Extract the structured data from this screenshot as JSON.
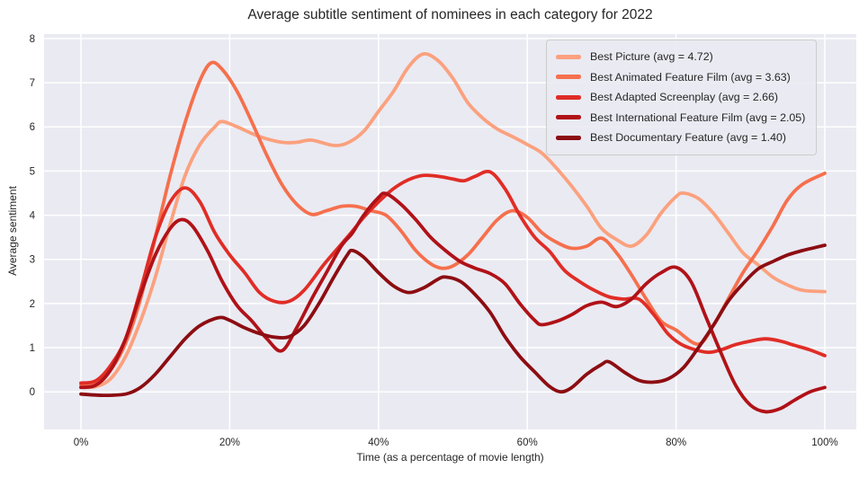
{
  "chart_data": {
    "type": "line",
    "title": "Average subtitle sentiment of nominees in each category for 2022",
    "xlabel": "Time (as a percentage of movie length)",
    "ylabel": "Average sentiment",
    "x_tick_labels": [
      "0%",
      "20%",
      "40%",
      "60%",
      "80%",
      "100%"
    ],
    "x_tick_values": [
      0,
      20,
      40,
      60,
      80,
      100
    ],
    "y_tick_values": [
      0,
      1,
      2,
      3,
      4,
      5,
      6,
      7,
      8
    ],
    "xlim": [
      0,
      100
    ],
    "ylim": [
      -0.85,
      8.1
    ],
    "grid": true,
    "grid_color": "#ffffff",
    "plot_background": "#eaeaf2",
    "text_color": "#262626",
    "legend_position": "upper right",
    "series": [
      {
        "name": "Best Picture",
        "legend_label": "Best Picture (avg = 4.72)",
        "avg": 4.72,
        "color": "#fba17e",
        "points": [
          [
            0,
            0.1
          ],
          [
            2,
            0.12
          ],
          [
            4,
            0.3
          ],
          [
            6,
            0.8
          ],
          [
            8,
            1.6
          ],
          [
            10,
            2.6
          ],
          [
            12,
            3.8
          ],
          [
            14,
            4.9
          ],
          [
            16,
            5.6
          ],
          [
            18,
            6.0
          ],
          [
            19,
            6.12
          ],
          [
            21,
            6.0
          ],
          [
            24,
            5.78
          ],
          [
            27,
            5.65
          ],
          [
            29,
            5.65
          ],
          [
            31,
            5.7
          ],
          [
            34,
            5.58
          ],
          [
            36,
            5.65
          ],
          [
            38,
            5.9
          ],
          [
            40,
            6.35
          ],
          [
            42,
            6.8
          ],
          [
            44,
            7.35
          ],
          [
            46,
            7.65
          ],
          [
            48,
            7.5
          ],
          [
            50,
            7.1
          ],
          [
            52,
            6.55
          ],
          [
            54,
            6.2
          ],
          [
            56,
            5.95
          ],
          [
            58,
            5.78
          ],
          [
            60,
            5.6
          ],
          [
            62,
            5.4
          ],
          [
            64,
            5.05
          ],
          [
            66,
            4.65
          ],
          [
            68,
            4.2
          ],
          [
            70,
            3.7
          ],
          [
            72,
            3.45
          ],
          [
            74,
            3.3
          ],
          [
            76,
            3.55
          ],
          [
            78,
            4.05
          ],
          [
            80,
            4.42
          ],
          [
            81,
            4.5
          ],
          [
            83,
            4.38
          ],
          [
            85,
            4.05
          ],
          [
            87,
            3.6
          ],
          [
            89,
            3.15
          ],
          [
            91,
            2.88
          ],
          [
            93,
            2.6
          ],
          [
            95,
            2.42
          ],
          [
            97,
            2.3
          ],
          [
            100,
            2.27
          ]
        ]
      },
      {
        "name": "Best Animated Feature Film",
        "legend_label": "Best Animated Feature Film (avg = 3.63)",
        "avg": 3.63,
        "color": "#f5704d",
        "points": [
          [
            0,
            0.15
          ],
          [
            2,
            0.2
          ],
          [
            4,
            0.5
          ],
          [
            6,
            1.1
          ],
          [
            8,
            2.1
          ],
          [
            10,
            3.5
          ],
          [
            12,
            4.9
          ],
          [
            14,
            6.1
          ],
          [
            16,
            7.05
          ],
          [
            17.5,
            7.45
          ],
          [
            19,
            7.3
          ],
          [
            21,
            6.8
          ],
          [
            23,
            6.1
          ],
          [
            25,
            5.35
          ],
          [
            27,
            4.7
          ],
          [
            29,
            4.25
          ],
          [
            31,
            4.02
          ],
          [
            33,
            4.1
          ],
          [
            35,
            4.2
          ],
          [
            37,
            4.2
          ],
          [
            39,
            4.1
          ],
          [
            41,
            4.0
          ],
          [
            43,
            3.65
          ],
          [
            45,
            3.2
          ],
          [
            47,
            2.9
          ],
          [
            48.5,
            2.8
          ],
          [
            50,
            2.85
          ],
          [
            52,
            3.1
          ],
          [
            54,
            3.5
          ],
          [
            56,
            3.9
          ],
          [
            58,
            4.1
          ],
          [
            60,
            3.95
          ],
          [
            62,
            3.6
          ],
          [
            64,
            3.38
          ],
          [
            66,
            3.25
          ],
          [
            68,
            3.3
          ],
          [
            70,
            3.48
          ],
          [
            72,
            3.15
          ],
          [
            74,
            2.65
          ],
          [
            76,
            2.1
          ],
          [
            78,
            1.6
          ],
          [
            80,
            1.4
          ],
          [
            83,
            1.08
          ],
          [
            85,
            1.5
          ],
          [
            87,
            2.1
          ],
          [
            89,
            2.7
          ],
          [
            91,
            3.2
          ],
          [
            93,
            3.75
          ],
          [
            95,
            4.35
          ],
          [
            97,
            4.7
          ],
          [
            100,
            4.95
          ]
        ]
      },
      {
        "name": "Best Adapted Screenplay",
        "legend_label": "Best Adapted Screenplay (avg = 2.66)",
        "avg": 2.66,
        "color": "#e02d26",
        "points": [
          [
            0,
            0.2
          ],
          [
            2,
            0.25
          ],
          [
            4,
            0.6
          ],
          [
            6,
            1.2
          ],
          [
            8,
            2.3
          ],
          [
            10,
            3.5
          ],
          [
            12,
            4.3
          ],
          [
            14,
            4.62
          ],
          [
            16,
            4.3
          ],
          [
            18,
            3.6
          ],
          [
            20,
            3.1
          ],
          [
            22,
            2.7
          ],
          [
            24,
            2.25
          ],
          [
            26,
            2.05
          ],
          [
            28,
            2.05
          ],
          [
            30,
            2.3
          ],
          [
            32.5,
            2.85
          ],
          [
            34,
            3.15
          ],
          [
            36.3,
            3.6
          ],
          [
            38,
            3.95
          ],
          [
            40,
            4.3
          ],
          [
            42,
            4.6
          ],
          [
            44,
            4.8
          ],
          [
            46,
            4.9
          ],
          [
            48,
            4.88
          ],
          [
            50,
            4.82
          ],
          [
            51.5,
            4.78
          ],
          [
            53,
            4.88
          ],
          [
            55,
            4.98
          ],
          [
            57,
            4.6
          ],
          [
            59,
            4.0
          ],
          [
            61,
            3.5
          ],
          [
            63,
            3.18
          ],
          [
            65,
            2.75
          ],
          [
            67,
            2.5
          ],
          [
            69,
            2.3
          ],
          [
            71,
            2.15
          ],
          [
            73,
            2.1
          ],
          [
            75,
            2.1
          ],
          [
            77,
            1.75
          ],
          [
            79,
            1.3
          ],
          [
            81,
            1.05
          ],
          [
            84,
            0.9
          ],
          [
            86,
            0.95
          ],
          [
            88,
            1.07
          ],
          [
            90,
            1.15
          ],
          [
            92,
            1.2
          ],
          [
            94,
            1.15
          ],
          [
            96,
            1.05
          ],
          [
            98,
            0.95
          ],
          [
            100,
            0.82
          ]
        ]
      },
      {
        "name": "Best International Feature Film",
        "legend_label": "Best International Feature Film (avg = 2.05)",
        "avg": 2.05,
        "color": "#b01218",
        "points": [
          [
            0,
            0.1
          ],
          [
            2,
            0.15
          ],
          [
            4,
            0.5
          ],
          [
            6,
            1.2
          ],
          [
            8,
            2.2
          ],
          [
            10,
            3.1
          ],
          [
            12,
            3.7
          ],
          [
            13.5,
            3.9
          ],
          [
            15,
            3.75
          ],
          [
            17,
            3.2
          ],
          [
            19,
            2.5
          ],
          [
            21,
            1.95
          ],
          [
            23,
            1.6
          ],
          [
            25,
            1.2
          ],
          [
            27,
            0.93
          ],
          [
            29,
            1.45
          ],
          [
            31,
            2.1
          ],
          [
            33,
            2.7
          ],
          [
            35,
            3.3
          ],
          [
            36.5,
            3.6
          ],
          [
            38,
            4.0
          ],
          [
            40,
            4.4
          ],
          [
            41,
            4.49
          ],
          [
            43,
            4.25
          ],
          [
            45,
            3.9
          ],
          [
            47,
            3.5
          ],
          [
            49,
            3.2
          ],
          [
            51,
            2.95
          ],
          [
            53,
            2.8
          ],
          [
            55,
            2.68
          ],
          [
            57,
            2.45
          ],
          [
            59,
            2.0
          ],
          [
            61,
            1.62
          ],
          [
            62,
            1.52
          ],
          [
            64,
            1.6
          ],
          [
            66,
            1.75
          ],
          [
            68,
            1.95
          ],
          [
            70,
            2.03
          ],
          [
            72,
            1.93
          ],
          [
            74,
            2.1
          ],
          [
            76,
            2.45
          ],
          [
            78,
            2.7
          ],
          [
            80,
            2.82
          ],
          [
            82,
            2.5
          ],
          [
            84,
            1.7
          ],
          [
            86,
            0.9
          ],
          [
            88,
            0.15
          ],
          [
            90,
            -0.3
          ],
          [
            92,
            -0.45
          ],
          [
            94,
            -0.38
          ],
          [
            96,
            -0.18
          ],
          [
            98,
            0.0
          ],
          [
            100,
            0.1
          ]
        ]
      },
      {
        "name": "Best Documentary Feature",
        "legend_label": "Best Documentary Feature (avg = 1.40)",
        "avg": 1.4,
        "color": "#8c0d12",
        "points": [
          [
            0,
            -0.05
          ],
          [
            3,
            -0.08
          ],
          [
            6,
            -0.05
          ],
          [
            8,
            0.1
          ],
          [
            10,
            0.4
          ],
          [
            12,
            0.8
          ],
          [
            14,
            1.2
          ],
          [
            16,
            1.5
          ],
          [
            18.5,
            1.68
          ],
          [
            20,
            1.62
          ],
          [
            22,
            1.45
          ],
          [
            24,
            1.32
          ],
          [
            26,
            1.24
          ],
          [
            28,
            1.25
          ],
          [
            30,
            1.5
          ],
          [
            32,
            2.0
          ],
          [
            34,
            2.6
          ],
          [
            35.8,
            3.1
          ],
          [
            36.5,
            3.2
          ],
          [
            38,
            3.05
          ],
          [
            40,
            2.7
          ],
          [
            42,
            2.4
          ],
          [
            44,
            2.25
          ],
          [
            46,
            2.35
          ],
          [
            48,
            2.55
          ],
          [
            49,
            2.6
          ],
          [
            51,
            2.5
          ],
          [
            53,
            2.2
          ],
          [
            55,
            1.8
          ],
          [
            57,
            1.25
          ],
          [
            59,
            0.8
          ],
          [
            61,
            0.45
          ],
          [
            63,
            0.12
          ],
          [
            64.5,
            0.0
          ],
          [
            66,
            0.1
          ],
          [
            68,
            0.4
          ],
          [
            70,
            0.62
          ],
          [
            71,
            0.68
          ],
          [
            73,
            0.45
          ],
          [
            75,
            0.26
          ],
          [
            77,
            0.22
          ],
          [
            79,
            0.3
          ],
          [
            81,
            0.55
          ],
          [
            83,
            1.0
          ],
          [
            85,
            1.5
          ],
          [
            87,
            2.05
          ],
          [
            89,
            2.45
          ],
          [
            91,
            2.78
          ],
          [
            93,
            2.95
          ],
          [
            95,
            3.1
          ],
          [
            97,
            3.2
          ],
          [
            100,
            3.32
          ]
        ]
      }
    ]
  }
}
